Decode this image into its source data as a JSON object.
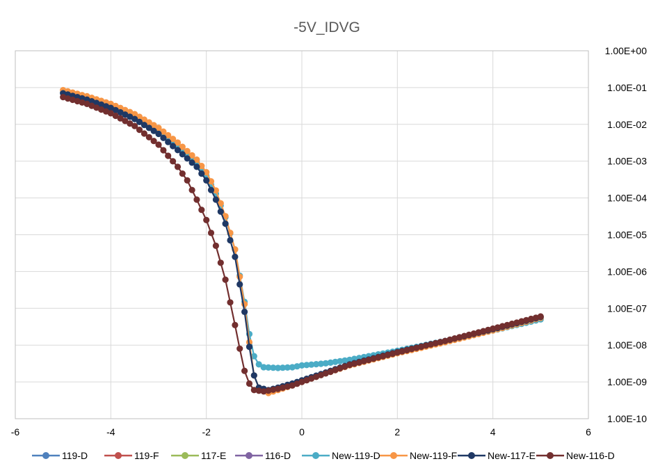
{
  "chart_data": {
    "type": "line",
    "title": "-5V_IDVG",
    "xlabel": "",
    "ylabel": "",
    "xlim": [
      -6,
      6
    ],
    "ylim": [
      1e-10,
      1
    ],
    "y_scale": "log",
    "y_axis_side": "right",
    "grid": true,
    "legend_position": "bottom",
    "x_ticks": [
      "-6",
      "-4",
      "-2",
      "0",
      "2",
      "4",
      "6"
    ],
    "y_ticks": [
      "1.00E-10",
      "1.00E-09",
      "1.00E-08",
      "1.00E-07",
      "1.00E-06",
      "1.00E-05",
      "1.00E-04",
      "1.00E-03",
      "1.00E-02",
      "1.00E-01",
      "1.00E+00"
    ],
    "series": [
      {
        "name": "119-D",
        "color": "#4F81BD",
        "points": []
      },
      {
        "name": "119-F",
        "color": "#C0504D",
        "points": []
      },
      {
        "name": "117-E",
        "color": "#9BBB59",
        "points": []
      },
      {
        "name": "116-D",
        "color": "#8064A2",
        "points": []
      },
      {
        "name": "New-119-D",
        "color": "#4BACC6",
        "points": [
          [
            -5,
            0.075
          ],
          [
            -4.5,
            0.05
          ],
          [
            -4,
            0.03
          ],
          [
            -3.5,
            0.015
          ],
          [
            -3,
            0.006
          ],
          [
            -2.6,
            0.0025
          ],
          [
            -2.2,
            0.0009
          ],
          [
            -2,
            0.0004
          ],
          [
            -1.8,
            0.00013
          ],
          [
            -1.6,
            3e-05
          ],
          [
            -1.4,
            4e-06
          ],
          [
            -1.2,
            1.5e-07
          ],
          [
            -1.1,
            2e-08
          ],
          [
            -1,
            5e-09
          ],
          [
            -0.9,
            3e-09
          ],
          [
            -0.8,
            2.5e-09
          ],
          [
            -0.5,
            2.4e-09
          ],
          [
            -0.2,
            2.5e-09
          ],
          [
            0,
            2.8e-09
          ],
          [
            0.5,
            3.2e-09
          ],
          [
            1,
            4e-09
          ],
          [
            2,
            7e-09
          ],
          [
            3,
            1.3e-08
          ],
          [
            4,
            2.5e-08
          ],
          [
            5,
            5e-08
          ]
        ]
      },
      {
        "name": "New-119-F",
        "color": "#F79646",
        "points": [
          [
            -5,
            0.085
          ],
          [
            -4.5,
            0.058
          ],
          [
            -4,
            0.036
          ],
          [
            -3.5,
            0.019
          ],
          [
            -3,
            0.008
          ],
          [
            -2.6,
            0.0032
          ],
          [
            -2.2,
            0.0011
          ],
          [
            -2,
            0.0005
          ],
          [
            -1.8,
            0.00016
          ],
          [
            -1.6,
            3.2e-05
          ],
          [
            -1.4,
            4e-06
          ],
          [
            -1.2,
            1.3e-07
          ],
          [
            -1.1,
            1.2e-08
          ],
          [
            -1,
            1.5e-09
          ],
          [
            -0.9,
            7e-10
          ],
          [
            -0.7,
            5e-10
          ],
          [
            -0.5,
            6e-10
          ],
          [
            -0.2,
            8e-10
          ],
          [
            0,
            1e-09
          ],
          [
            0.5,
            1.7e-09
          ],
          [
            1,
            2.8e-09
          ],
          [
            2,
            6e-09
          ],
          [
            3,
            1.2e-08
          ],
          [
            4,
            2.5e-08
          ],
          [
            5,
            5.5e-08
          ]
        ]
      },
      {
        "name": "New-117-E",
        "color": "#1F3864",
        "points": [
          [
            -5,
            0.07
          ],
          [
            -4.5,
            0.047
          ],
          [
            -4,
            0.028
          ],
          [
            -3.5,
            0.014
          ],
          [
            -3,
            0.0055
          ],
          [
            -2.6,
            0.002
          ],
          [
            -2.2,
            0.0007
          ],
          [
            -2,
            0.0003
          ],
          [
            -1.8,
            9e-05
          ],
          [
            -1.6,
            2e-05
          ],
          [
            -1.4,
            2.5e-06
          ],
          [
            -1.2,
            8e-08
          ],
          [
            -1.1,
            9e-09
          ],
          [
            -1,
            1.5e-09
          ],
          [
            -0.9,
            7e-10
          ],
          [
            -0.7,
            6e-10
          ],
          [
            -0.5,
            7e-10
          ],
          [
            -0.2,
            9e-10
          ],
          [
            0,
            1.1e-09
          ],
          [
            0.5,
            1.8e-09
          ],
          [
            1,
            3e-09
          ],
          [
            2,
            6.5e-09
          ],
          [
            3,
            1.3e-08
          ],
          [
            4,
            2.7e-08
          ],
          [
            5,
            5.8e-08
          ]
        ]
      },
      {
        "name": "New-116-D",
        "color": "#722F2F",
        "points": [
          [
            -5,
            0.055
          ],
          [
            -4.5,
            0.036
          ],
          [
            -4,
            0.02
          ],
          [
            -3.5,
            0.009
          ],
          [
            -3,
            0.0028
          ],
          [
            -2.6,
            0.0007
          ],
          [
            -2.4,
            0.0003
          ],
          [
            -2.2,
            9e-05
          ],
          [
            -2,
            2.5e-05
          ],
          [
            -1.8,
            5e-06
          ],
          [
            -1.6,
            6e-07
          ],
          [
            -1.4,
            3.5e-08
          ],
          [
            -1.3,
            8e-09
          ],
          [
            -1.2,
            2e-09
          ],
          [
            -1.1,
            9e-10
          ],
          [
            -1,
            6e-10
          ],
          [
            -0.8,
            5.5e-10
          ],
          [
            -0.5,
            6.5e-10
          ],
          [
            -0.2,
            8e-10
          ],
          [
            0,
            1e-09
          ],
          [
            0.5,
            1.7e-09
          ],
          [
            1,
            2.9e-09
          ],
          [
            2,
            6.3e-09
          ],
          [
            3,
            1.3e-08
          ],
          [
            4,
            2.8e-08
          ],
          [
            5,
            6e-08
          ]
        ]
      }
    ]
  }
}
